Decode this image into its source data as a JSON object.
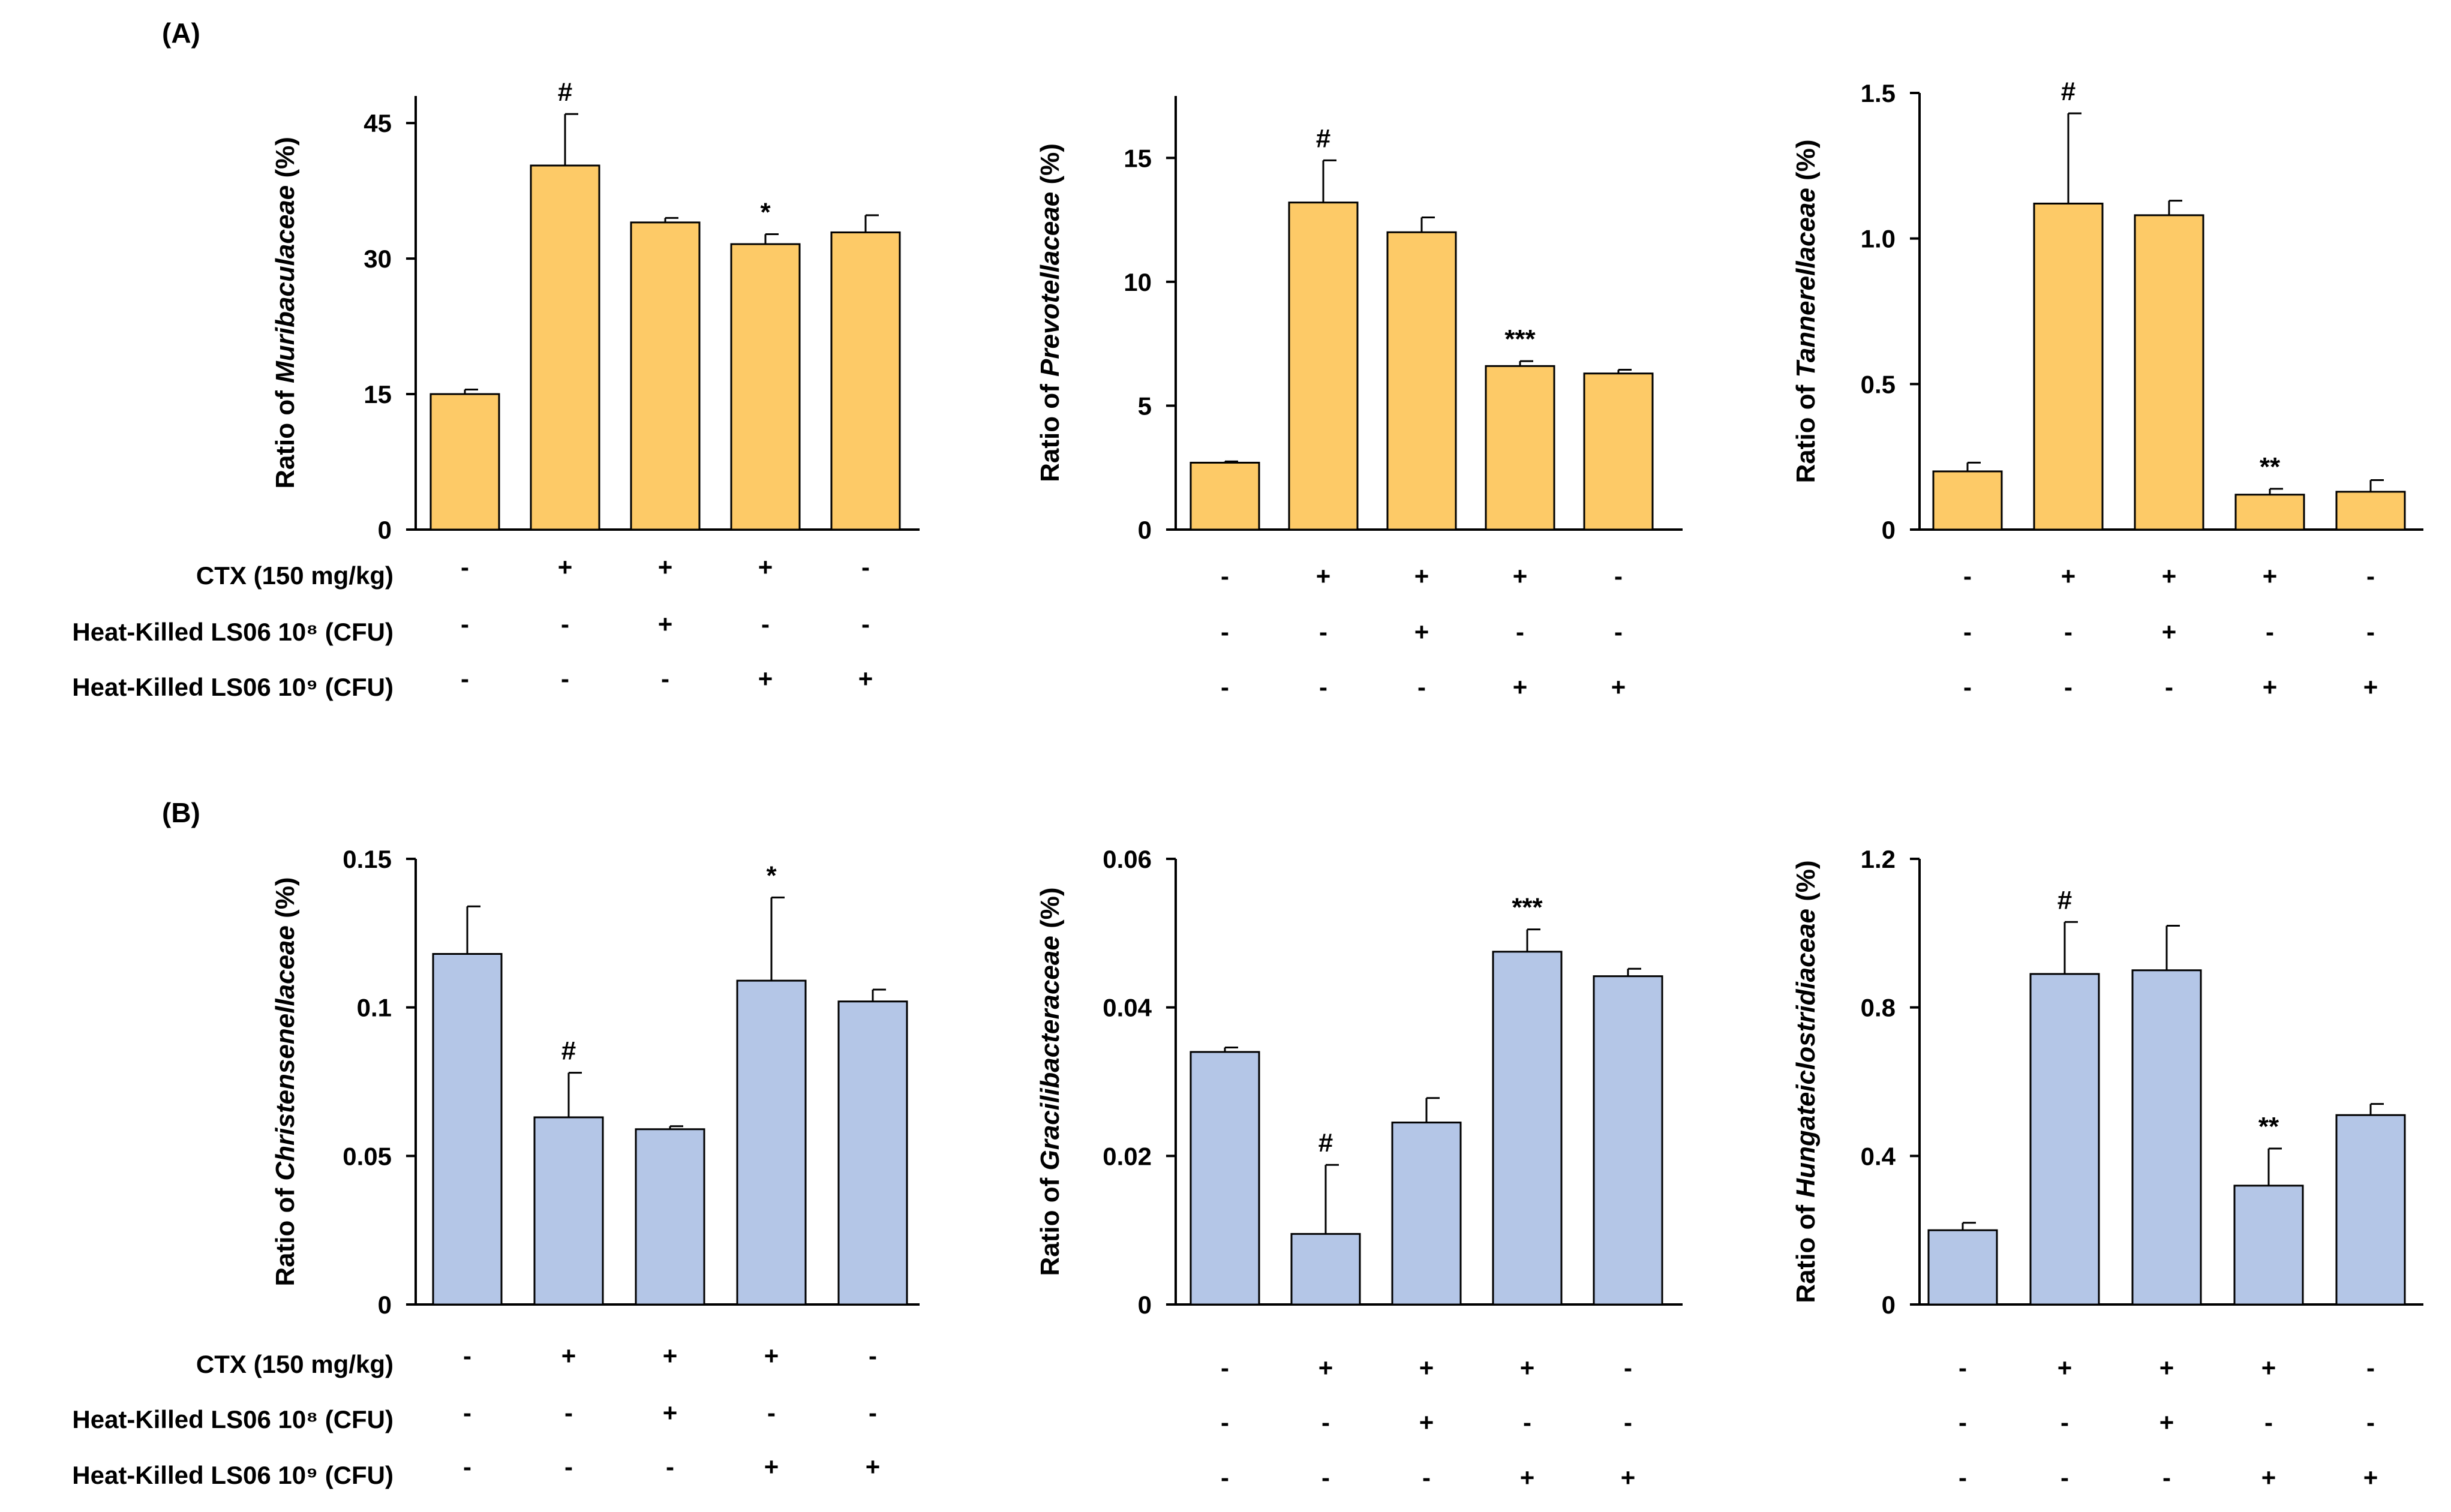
{
  "panels": [
    {
      "label": "(A)"
    },
    {
      "label": "(B)"
    }
  ],
  "colors": {
    "orange_bar": "#FDCA67",
    "blue_bar": "#B4C6E7",
    "axis": "#000000"
  },
  "treatment_rows": {
    "labels": [
      "CTX (150 mg/kg)",
      "Heat-Killed LS06 10⁸ (CFU)",
      "Heat-Killed LS06 10⁹ (CFU)"
    ],
    "signs": [
      [
        "-",
        "+",
        "+",
        "+",
        "-"
      ],
      [
        "-",
        "-",
        "+",
        "-",
        "-"
      ],
      [
        "-",
        "-",
        "-",
        "+",
        "+"
      ]
    ]
  },
  "chart_data": [
    {
      "type": "bar",
      "panel": "A",
      "ylabel_prefix": "Ratio of ",
      "ylabel_taxon": "Muribaculaceae",
      "ylabel_suffix": " (%)",
      "ylim": [
        0,
        48
      ],
      "ticks": [
        0,
        15,
        30,
        45
      ],
      "tick_labels": [
        "0",
        "15",
        "30",
        "45"
      ],
      "categories": [
        "1",
        "2",
        "3",
        "4",
        "5"
      ],
      "values": [
        15.0,
        40.3,
        34.0,
        31.6,
        32.9
      ],
      "errors": [
        0.5,
        5.7,
        0.5,
        1.1,
        1.9
      ],
      "annotations": [
        "",
        "#",
        "",
        "*",
        ""
      ]
    },
    {
      "type": "bar",
      "panel": "A",
      "ylabel_prefix": "Ratio of ",
      "ylabel_taxon": "Prevotellaceae",
      "ylabel_suffix": " (%)",
      "ylim": [
        0,
        17.5
      ],
      "ticks": [
        0,
        5,
        10,
        15
      ],
      "tick_labels": [
        "0",
        "5",
        "10",
        "15"
      ],
      "categories": [
        "1",
        "2",
        "3",
        "4",
        "5"
      ],
      "values": [
        2.7,
        13.2,
        12.0,
        6.6,
        6.3
      ],
      "errors": [
        0.05,
        1.7,
        0.6,
        0.2,
        0.15
      ],
      "annotations": [
        "",
        "#",
        "",
        "***",
        ""
      ]
    },
    {
      "type": "bar",
      "panel": "A",
      "ylabel_prefix": "Ratio of ",
      "ylabel_taxon": "Tannerellaceae",
      "ylabel_suffix": " (%)",
      "ylim": [
        0,
        1.5
      ],
      "ticks": [
        0,
        0.5,
        1.0,
        1.5
      ],
      "tick_labels": [
        "0",
        "0.5",
        "1.0",
        "1.5"
      ],
      "categories": [
        "1",
        "2",
        "3",
        "4",
        "5"
      ],
      "values": [
        0.2,
        1.12,
        1.08,
        0.12,
        0.13
      ],
      "errors": [
        0.03,
        0.31,
        0.05,
        0.02,
        0.04
      ],
      "annotations": [
        "",
        "#",
        "",
        "**",
        ""
      ]
    },
    {
      "type": "bar",
      "panel": "B",
      "ylabel_prefix": "Ratio of ",
      "ylabel_taxon": "Christensenellaceae",
      "ylabel_suffix": " (%)",
      "ylim": [
        0,
        0.15
      ],
      "ticks": [
        0,
        0.05,
        0.1,
        0.15
      ],
      "tick_labels": [
        "0",
        "0.05",
        "0.1",
        "0.15"
      ],
      "categories": [
        "1",
        "2",
        "3",
        "4",
        "5"
      ],
      "values": [
        0.118,
        0.063,
        0.059,
        0.109,
        0.102
      ],
      "errors": [
        0.016,
        0.015,
        0.001,
        0.028,
        0.004
      ],
      "annotations": [
        "",
        "#",
        "",
        "*",
        ""
      ]
    },
    {
      "type": "bar",
      "panel": "B",
      "ylabel_prefix": "Ratio of ",
      "ylabel_taxon": "Gracilibacteraceae",
      "ylabel_suffix": " (%)",
      "ylim": [
        0,
        0.06
      ],
      "ticks": [
        0,
        0.02,
        0.04,
        0.06
      ],
      "tick_labels": [
        "0",
        "0.02",
        "0.04",
        "0.06"
      ],
      "categories": [
        "1",
        "2",
        "3",
        "4",
        "5"
      ],
      "values": [
        0.034,
        0.0095,
        0.0245,
        0.0475,
        0.0442
      ],
      "errors": [
        0.0006,
        0.0093,
        0.0033,
        0.003,
        0.001
      ],
      "annotations": [
        "",
        "#",
        "",
        "***",
        ""
      ]
    },
    {
      "type": "bar",
      "panel": "B",
      "ylabel_prefix": "Ratio of ",
      "ylabel_taxon": "Hungateiclostridiaceae",
      "ylabel_suffix": " (%)",
      "ylim": [
        0,
        1.2
      ],
      "ticks": [
        0,
        0.4,
        0.8,
        1.2
      ],
      "tick_labels": [
        "0",
        "0.4",
        "0.8",
        "1.2"
      ],
      "categories": [
        "1",
        "2",
        "3",
        "4",
        "5"
      ],
      "values": [
        0.2,
        0.89,
        0.9,
        0.32,
        0.51
      ],
      "errors": [
        0.02,
        0.14,
        0.12,
        0.1,
        0.03
      ],
      "annotations": [
        "",
        "#",
        "",
        "**",
        ""
      ]
    }
  ]
}
